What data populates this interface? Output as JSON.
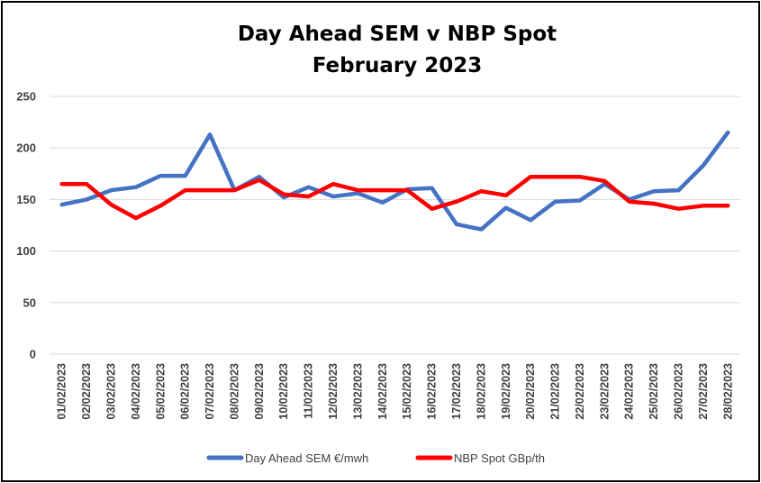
{
  "chart_data": {
    "type": "line",
    "title": "Day Ahead SEM v NBP Spot",
    "subtitle": "February 2023",
    "xlabel": "",
    "ylabel": "",
    "ylim": [
      0,
      250
    ],
    "yticks": [
      0,
      50,
      100,
      150,
      200,
      250
    ],
    "grid": true,
    "legend_position": "bottom",
    "categories": [
      "01/02/2023",
      "02/02/2023",
      "03/02/2023",
      "04/02/2023",
      "05/02/2023",
      "06/02/2023",
      "07/02/2023",
      "08/02/2023",
      "09/02/2023",
      "10/02/2023",
      "11/02/2023",
      "12/02/2023",
      "13/02/2023",
      "14/02/2023",
      "15/02/2023",
      "16/02/2023",
      "17/02/2023",
      "18/02/2023",
      "19/02/2023",
      "20/02/2023",
      "21/02/2023",
      "22/02/2023",
      "23/02/2023",
      "24/02/2023",
      "25/02/2023",
      "26/02/2023",
      "27/02/2023",
      "28/02/2023"
    ],
    "series": [
      {
        "name": "Day Ahead SEM €/mwh",
        "color": "#4472c4",
        "values": [
          145,
          150,
          159,
          162,
          173,
          173,
          213,
          159,
          172,
          152,
          162,
          153,
          156,
          147,
          160,
          161,
          126,
          121,
          142,
          130,
          148,
          149,
          165,
          150,
          158,
          159,
          183,
          215
        ]
      },
      {
        "name": "NBP Spot GBp/th",
        "color": "#ff0000",
        "values": [
          165,
          165,
          145,
          132,
          144,
          159,
          159,
          159,
          169,
          155,
          153,
          165,
          159,
          159,
          159,
          141,
          148,
          158,
          154,
          172,
          172,
          172,
          168,
          148,
          146,
          141,
          144,
          144
        ]
      }
    ]
  }
}
